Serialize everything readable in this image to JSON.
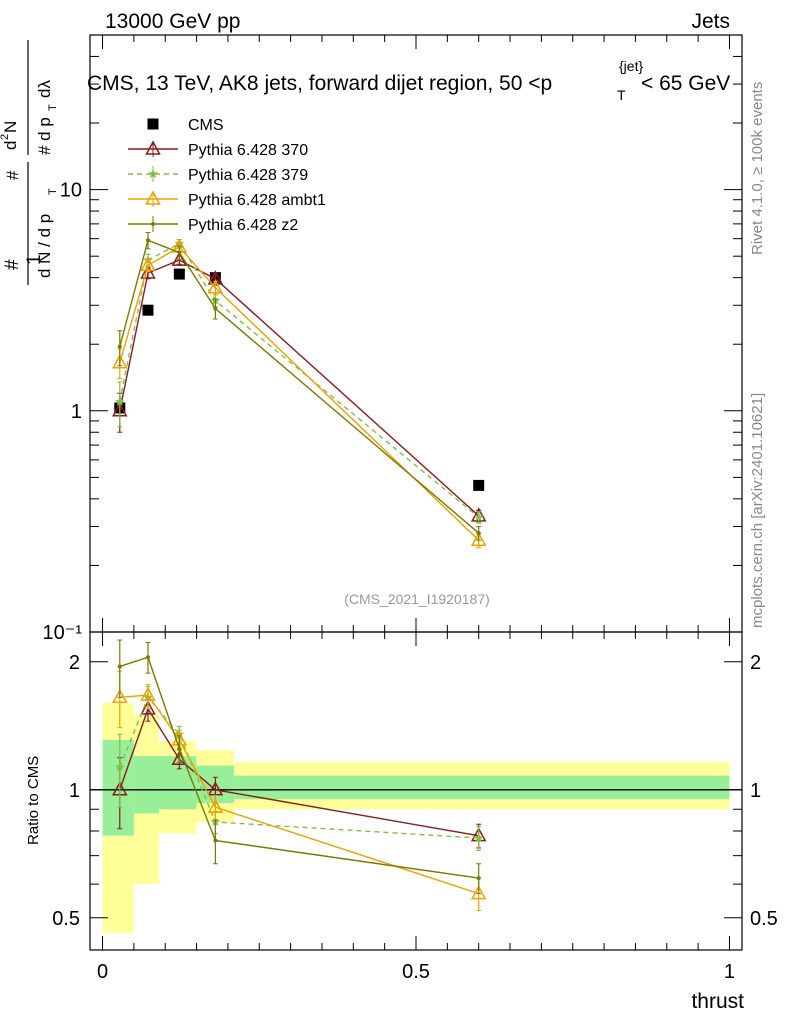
{
  "header": {
    "energy_label": "13000 GeV pp",
    "category_label": "Jets"
  },
  "side_labels": {
    "rivet": "Rivet 4.1.0, ≥ 100k events",
    "mcplots": "mcplots.cern.ch [arXiv:2401.10621]"
  },
  "chart_data": [
    {
      "type": "line",
      "panel": "main",
      "title": "CMS, 13 TeV, AK8 jets, forward dijet region, 50 <p_T^{jet}< 65 GeV",
      "watermark": "(CMS_2021_I1920187)",
      "ylabel": "1/(dN/dp_T) d²N/(dp_T dλ)",
      "xlabel": "thrust",
      "xlim": [
        -0.02,
        1.02
      ],
      "ylim": [
        0.1,
        50
      ],
      "yscale": "log",
      "x_ticks": [
        "0",
        "0.5",
        "1"
      ],
      "y_ticks": [
        "10⁻¹",
        "1",
        "10"
      ],
      "x": [
        0.0275,
        0.0725,
        0.1225,
        0.18,
        0.6
      ],
      "series": [
        {
          "name": "CMS",
          "color": "#000000",
          "marker": "square",
          "values": [
            1.03,
            2.85,
            4.15,
            4.0,
            0.46
          ],
          "errors": [
            0.04,
            0.08,
            0.1,
            0.12,
            0.015
          ]
        },
        {
          "name": "Pythia 6.428 370",
          "color": "#8b1a1a",
          "marker": "triangle-open",
          "values": [
            1.0,
            4.2,
            4.8,
            3.95,
            0.335
          ],
          "errors": [
            0.2,
            0.25,
            0.2,
            0.25,
            0.02
          ]
        },
        {
          "name": "Pythia 6.428 379",
          "color": "#7dc242",
          "marker": "star",
          "values": [
            1.1,
            4.8,
            5.7,
            3.15,
            0.33
          ],
          "errors": [
            0.25,
            0.3,
            0.25,
            0.2,
            0.02
          ]
        },
        {
          "name": "Pythia 6.428 ambt1",
          "color": "#f0a000",
          "marker": "triangle-open",
          "values": [
            1.65,
            4.55,
            5.5,
            3.6,
            0.26
          ],
          "errors": [
            0.25,
            0.3,
            0.3,
            0.25,
            0.02
          ]
        },
        {
          "name": "Pythia 6.428 z2",
          "color": "#7a7a00",
          "marker": "dot",
          "values": [
            1.95,
            5.9,
            5.2,
            2.9,
            0.28
          ],
          "errors": [
            0.35,
            0.5,
            0.35,
            0.3,
            0.02
          ]
        }
      ]
    },
    {
      "type": "line",
      "panel": "ratio",
      "ylabel": "Ratio to CMS",
      "xlabel": "thrust",
      "xlim": [
        -0.02,
        1.02
      ],
      "ylim": [
        0.42,
        2.35
      ],
      "yscale": "log",
      "y_ticks": [
        "0.5",
        "1",
        "2"
      ],
      "x": [
        0.0275,
        0.0725,
        0.1225,
        0.18,
        0.6
      ],
      "bands": {
        "edges": [
          0.0,
          0.05,
          0.09,
          0.15,
          0.21,
          1.0
        ],
        "green": [
          [
            0.78,
            1.31
          ],
          [
            0.88,
            1.2
          ],
          [
            0.9,
            1.2
          ],
          [
            0.93,
            1.14
          ],
          [
            0.95,
            1.08
          ]
        ],
        "yellow": [
          [
            0.46,
            1.6
          ],
          [
            0.6,
            1.5
          ],
          [
            0.79,
            1.3
          ],
          [
            0.84,
            1.24
          ],
          [
            0.9,
            1.16
          ]
        ]
      },
      "series": [
        {
          "name": "Pythia 6.428 370",
          "color": "#8b1a1a",
          "marker": "triangle-open",
          "values": [
            1.0,
            1.55,
            1.18,
            1.0,
            0.78
          ],
          "errors": [
            0.19,
            0.1,
            0.06,
            0.07,
            0.05
          ]
        },
        {
          "name": "Pythia 6.428 379",
          "color": "#7dc242",
          "marker": "star",
          "values": [
            1.13,
            1.65,
            1.35,
            0.84,
            0.77
          ],
          "errors": [
            0.22,
            0.1,
            0.06,
            0.05,
            0.05
          ]
        },
        {
          "name": "Pythia 6.428 ambt1",
          "color": "#f0a000",
          "marker": "triangle-open",
          "values": [
            1.65,
            1.67,
            1.31,
            0.91,
            0.57
          ],
          "errors": [
            0.25,
            0.1,
            0.07,
            0.06,
            0.05
          ]
        },
        {
          "name": "Pythia 6.428 z2",
          "color": "#7a7a00",
          "marker": "dot",
          "values": [
            1.95,
            2.05,
            1.25,
            0.76,
            0.62
          ],
          "errors": [
            0.3,
            0.17,
            0.09,
            0.09,
            0.05
          ]
        }
      ]
    }
  ]
}
